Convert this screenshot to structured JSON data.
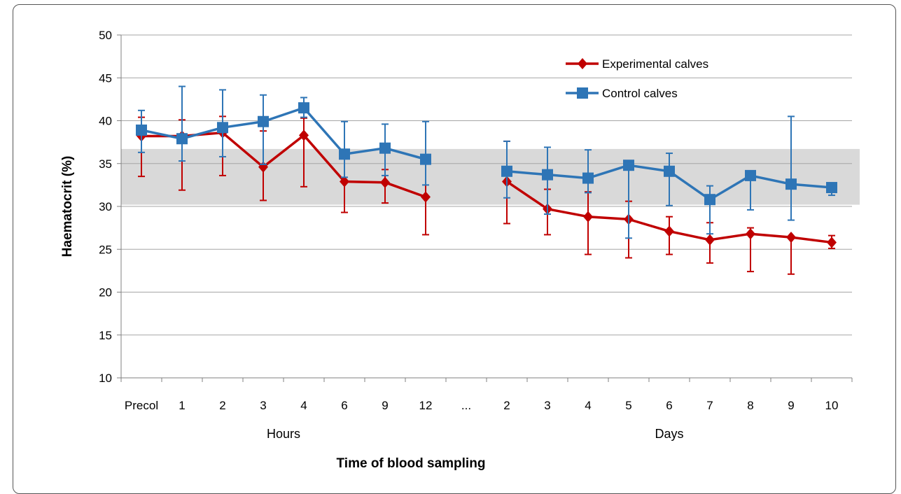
{
  "chart_data": {
    "type": "line",
    "xlabel": "Time of blood sampling",
    "ylabel": "Haematocrit (%)",
    "ylim": [
      10,
      50
    ],
    "yticks": [
      10,
      15,
      20,
      25,
      30,
      35,
      40,
      45,
      50
    ],
    "categories": [
      "Precol",
      "1",
      "2",
      "3",
      "4",
      "6",
      "9",
      "12",
      "...",
      "2",
      "3",
      "4",
      "5",
      "6",
      "7",
      "8",
      "9",
      "10"
    ],
    "groups": [
      {
        "label": "Hours",
        "from": 0,
        "to": 7
      },
      {
        "label": "Days",
        "from": 9,
        "to": 17
      }
    ],
    "reference_band": {
      "low": 30.2,
      "high": 36.7,
      "color": "#d9d9d9"
    },
    "grid": "horizontal",
    "legend_position": "top-right",
    "series": [
      {
        "name": "Experimental calves",
        "color": "#c00000",
        "marker": "diamond",
        "values": [
          38.2,
          38.2,
          38.6,
          34.6,
          38.3,
          32.9,
          32.8,
          31.1,
          null,
          32.9,
          29.7,
          28.8,
          28.5,
          27.1,
          26.1,
          26.8,
          26.4,
          25.8
        ],
        "err_low": [
          33.5,
          31.9,
          33.6,
          30.7,
          32.3,
          29.3,
          30.4,
          26.7,
          null,
          28.0,
          26.7,
          24.4,
          24.0,
          24.4,
          23.4,
          22.4,
          22.1,
          25.1
        ],
        "err_high": [
          40.4,
          40.1,
          40.5,
          38.8,
          40.3,
          36.2,
          34.3,
          35.4,
          null,
          37.6,
          32.0,
          31.7,
          30.6,
          28.8,
          28.1,
          27.5,
          26.4,
          26.6
        ]
      },
      {
        "name": "Control calves",
        "color": "#2e75b6",
        "marker": "square",
        "values": [
          38.9,
          37.9,
          39.2,
          39.9,
          41.5,
          36.1,
          36.8,
          35.5,
          null,
          34.1,
          33.7,
          33.3,
          34.8,
          34.1,
          30.8,
          33.6,
          32.6,
          32.2
        ],
        "err_low": [
          36.3,
          35.3,
          35.8,
          34.9,
          40.4,
          33.4,
          33.6,
          32.5,
          null,
          31.0,
          29.1,
          31.6,
          26.3,
          30.1,
          26.8,
          29.6,
          28.4,
          31.3
        ],
        "err_high": [
          41.2,
          44.0,
          43.6,
          43.0,
          42.7,
          39.9,
          39.6,
          39.9,
          null,
          37.6,
          36.9,
          36.6,
          35.1,
          36.2,
          32.4,
          33.6,
          40.5,
          32.4
        ]
      }
    ]
  }
}
